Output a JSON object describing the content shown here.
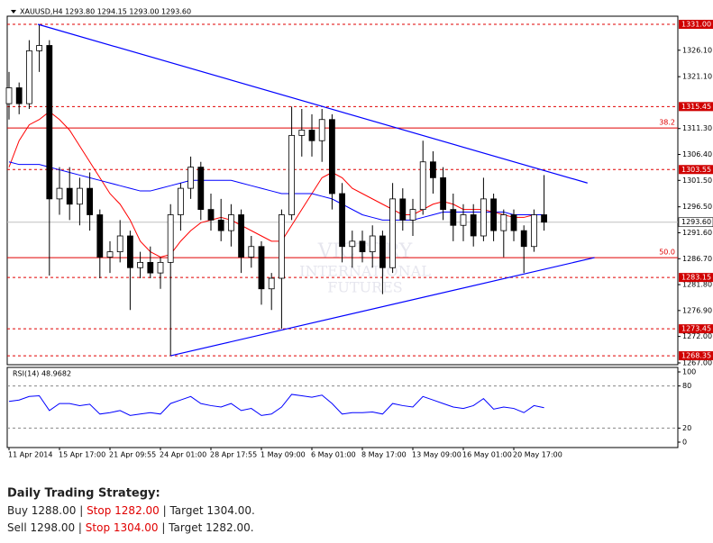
{
  "chart_data": {
    "type": "candlestick",
    "title": "XAUUSD,H4 1293.80 1294.15 1293.00 1293.60",
    "watermark": [
      "VICTORY",
      "INTERNATIONAL",
      "FUTURES"
    ],
    "categories": [
      "11 Apr 2014",
      null,
      null,
      null,
      null,
      "15 Apr 17:00",
      null,
      null,
      null,
      null,
      "21 Apr 09:55",
      null,
      null,
      null,
      null,
      "24 Apr 01:00",
      null,
      null,
      null,
      null,
      "28 Apr 17:55",
      null,
      null,
      null,
      null,
      "1 May 09:00",
      null,
      null,
      null,
      null,
      "6 May 01:00",
      null,
      null,
      null,
      null,
      "8 May 17:00",
      null,
      null,
      null,
      null,
      "13 May 09:00",
      null,
      null,
      null,
      null,
      "16 May 01:00",
      null,
      null,
      null,
      null,
      "20 May 17:00",
      null,
      null,
      null
    ],
    "open": [
      1316,
      1319,
      1316,
      1326,
      1327,
      1298,
      1300,
      1297,
      1300,
      1295,
      1287,
      1288,
      1291,
      1285,
      1286,
      1284,
      1286,
      1295,
      1300,
      1304,
      1296,
      1294,
      1292,
      1295,
      1287,
      1289,
      1281,
      1283,
      1295,
      1310,
      1311,
      1309,
      1313,
      1299,
      1289,
      1290,
      1288,
      1291,
      1285,
      1298,
      1294,
      1296,
      1305,
      1302,
      1296,
      1293,
      1295,
      1291,
      1298,
      1292,
      1295,
      1292,
      1289,
      1295
    ],
    "high": [
      1322,
      1320,
      1328,
      1331,
      1328,
      1304,
      1304,
      1302,
      1303,
      1296,
      1290,
      1294,
      1292,
      1288,
      1289,
      1287,
      1297,
      1301,
      1306,
      1305,
      1299,
      1298,
      1297,
      1296,
      1291,
      1290,
      1284,
      1296,
      1315.45,
      1315,
      1314,
      1315,
      1314,
      1301,
      1292,
      1292,
      1293,
      1292,
      1301,
      1300,
      1298,
      1309,
      1307,
      1304,
      1299,
      1297,
      1297,
      1302,
      1299,
      1296,
      1296,
      1293,
      1296,
      1302.5
    ],
    "low": [
      1313,
      1314,
      1315,
      1322,
      1283.5,
      1295,
      1294,
      1293,
      1292,
      1283,
      1284,
      1286,
      1277,
      1283,
      1283,
      1281,
      1268.35,
      1292,
      1298,
      1294,
      1292,
      1290,
      1289,
      1284,
      1285,
      1278,
      1277,
      1273.45,
      1294,
      1306,
      1306,
      1305,
      1296,
      1286,
      1285,
      1286,
      1285,
      1280,
      1284,
      1292,
      1291,
      1295,
      1299,
      1294,
      1290,
      1290,
      1289,
      1290,
      1290,
      1287,
      1290,
      1284,
      1288,
      1292
    ],
    "close": [
      1319,
      1316,
      1326,
      1327,
      1298,
      1300,
      1297,
      1300,
      1295,
      1287,
      1288,
      1291,
      1285,
      1286,
      1284,
      1286,
      1295,
      1300,
      1304,
      1296,
      1294,
      1292,
      1295,
      1287,
      1289,
      1281,
      1283,
      1295,
      1310,
      1311,
      1309,
      1313,
      1299,
      1289,
      1290,
      1288,
      1291,
      1285,
      1298,
      1294,
      1296,
      1305,
      1302,
      1296,
      1293,
      1295,
      1291,
      1298,
      1292,
      1295,
      1292,
      1289,
      1295,
      1293.6
    ],
    "moving_averages": [
      {
        "color": "#ff0000",
        "values": [
          1304,
          1309,
          1312,
          1313,
          1314.5,
          1313,
          1311,
          1308,
          1305,
          1302,
          1299,
          1297,
          1294,
          1290,
          1288,
          1287,
          1287.5,
          1290,
          1292,
          1293.5,
          1294,
          1294.5,
          1294,
          1293,
          1292,
          1291,
          1290,
          1290,
          1293,
          1296,
          1299,
          1302,
          1303,
          1302,
          1300,
          1299,
          1298,
          1297,
          1296,
          1295,
          1295,
          1296,
          1297,
          1297.5,
          1297,
          1296,
          1296,
          1296,
          1295.5,
          1295,
          1294.5,
          1294.5,
          1295,
          1295
        ]
      },
      {
        "color": "#0000ff",
        "values": [
          1305,
          1304.5,
          1304.5,
          1304.5,
          1304,
          1303.5,
          1303,
          1302.5,
          1302,
          1301.5,
          1301,
          1300.5,
          1300,
          1299.5,
          1299.5,
          1300,
          1300.5,
          1301,
          1301.5,
          1301.5,
          1301.5,
          1301.5,
          1301.5,
          1301,
          1300.5,
          1300,
          1299.5,
          1299,
          1299,
          1299,
          1299,
          1298.5,
          1298,
          1297,
          1296,
          1295,
          1294.5,
          1294,
          1294,
          1294,
          1294,
          1294.5,
          1295,
          1295.5,
          1295.5,
          1295.5,
          1295.5,
          1295.5,
          1295.5,
          1295.5,
          1295,
          1295,
          1295,
          1295
        ]
      }
    ],
    "trendlines": [
      {
        "color": "#0000ff",
        "x": [
          2.86,
          57.3
        ],
        "y": [
          1331,
          1301
        ]
      },
      {
        "color": "#0000ff",
        "x": [
          16,
          58
        ],
        "y": [
          1268.35,
          1286.9
        ]
      }
    ],
    "levels": [
      {
        "value": 1331.0,
        "label": "1331.00"
      },
      {
        "value": 1315.45,
        "label": "1315.45"
      },
      {
        "value": 1303.55,
        "label": "1303.55"
      },
      {
        "value": 1283.15,
        "label": "1283.15"
      },
      {
        "value": 1273.45,
        "label": "1273.45"
      },
      {
        "value": 1268.35,
        "label": "1268.35"
      }
    ],
    "fib_levels": [
      {
        "value": 1311.4,
        "label": "38.2"
      },
      {
        "value": 1286.9,
        "label": "50.0"
      }
    ],
    "current_price": {
      "value": 1293.6,
      "label": "1293.60"
    },
    "ylim": [
      1266.66,
      1332.53
    ],
    "yticks": [
      {
        "value": 1326.1,
        "label": "1326.10"
      },
      {
        "value": 1321.1,
        "label": "1321.10"
      },
      {
        "value": 1311.3,
        "label": "1311.30"
      },
      {
        "value": 1306.4,
        "label": "1306.40"
      },
      {
        "value": 1301.5,
        "label": "1301.50"
      },
      {
        "value": 1296.5,
        "label": "1296.50"
      },
      {
        "value": 1291.6,
        "label": "1291.60"
      },
      {
        "value": 1286.7,
        "label": "1286.70"
      },
      {
        "value": 1281.8,
        "label": "1281.80"
      },
      {
        "value": 1276.9,
        "label": "1276.90"
      },
      {
        "value": 1272.0,
        "label": "1272.00"
      },
      {
        "value": 1267.0,
        "label": "1267.00"
      }
    ],
    "rsi": {
      "label": "RSI(14) 48.9682",
      "color": "#0000ff",
      "values": [
        58,
        60,
        65,
        66,
        45,
        55,
        55,
        52,
        54,
        40,
        42,
        45,
        38,
        40,
        42,
        40,
        55,
        60,
        65,
        55,
        52,
        50,
        55,
        45,
        48,
        38,
        40,
        50,
        68,
        66,
        64,
        67,
        55,
        40,
        42,
        42,
        43,
        40,
        55,
        52,
        50,
        65,
        60,
        55,
        50,
        48,
        52,
        62,
        47,
        50,
        48,
        42,
        52,
        49
      ],
      "ylim": [
        0,
        100
      ],
      "yticks": [
        100,
        80,
        20,
        0
      ],
      "levels": [
        80,
        20
      ]
    }
  },
  "strategy": {
    "title": "Daily Trading Strategy:",
    "lines": [
      [
        "Buy 1288.00",
        " | ",
        "Stop 1282.00",
        " | ",
        "Target 1304.00."
      ],
      [
        "Sell 1298.00",
        " | ",
        "Stop 1304.00",
        " | ",
        "Target 1282.00."
      ]
    ]
  }
}
